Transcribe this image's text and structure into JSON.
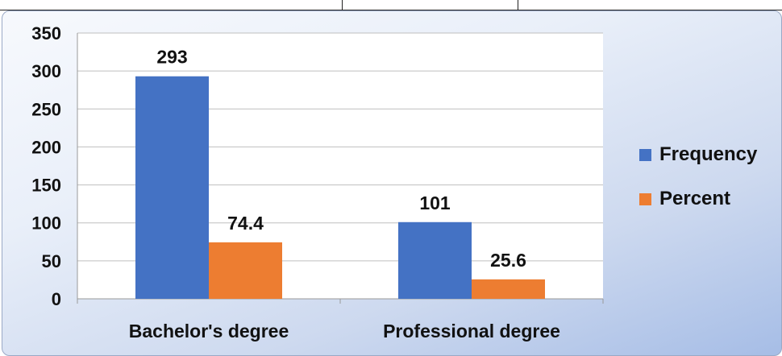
{
  "chart_data": {
    "type": "bar",
    "categories": [
      "Bachelor's degree",
      "Professional degree"
    ],
    "series": [
      {
        "name": "Frequency",
        "values": [
          293,
          101
        ],
        "labels": [
          "293",
          "101"
        ],
        "color": "#4472C4"
      },
      {
        "name": "Percent",
        "values": [
          74.4,
          25.6
        ],
        "labels": [
          "74.4",
          "25.6"
        ],
        "color": "#ED7D31"
      }
    ],
    "yticks": [
      "0",
      "50",
      "100",
      "150",
      "200",
      "250",
      "300",
      "350"
    ],
    "ylim": [
      0,
      350
    ],
    "grid": true,
    "legend_position": "right"
  }
}
